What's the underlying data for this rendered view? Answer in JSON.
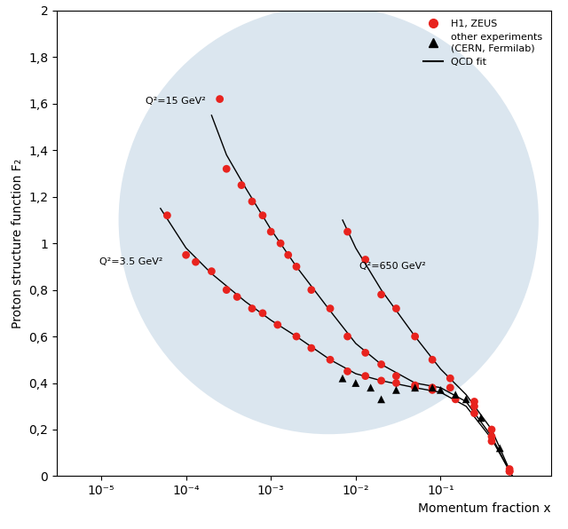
{
  "chart_data": {
    "type": "scatter",
    "x_label": "Momentum fraction x",
    "y_label": "Proton structure function F₂",
    "log": "x",
    "grid": false,
    "legend": "upper right",
    "xlim": [
      3e-06,
      2
    ],
    "ylim": [
      0,
      2
    ],
    "xticks": [
      {
        "value": 1e-05,
        "label": "10⁻⁵"
      },
      {
        "value": 0.0001,
        "label": "10⁻⁴"
      },
      {
        "value": 0.001,
        "label": "10⁻³"
      },
      {
        "value": 0.01,
        "label": "10⁻²"
      },
      {
        "value": 0.1,
        "label": "10⁻¹"
      }
    ],
    "yticks": [
      0,
      {
        "value": 0.2,
        "label": "0,2"
      },
      {
        "value": 0.4,
        "label": "0,4"
      },
      {
        "value": 0.6,
        "label": "0,6"
      },
      {
        "value": 0.8,
        "label": "0,8"
      },
      1,
      {
        "value": 1.2,
        "label": "1,2"
      },
      {
        "value": 1.4,
        "label": "1,4"
      },
      {
        "value": 1.6,
        "label": "1,6"
      },
      {
        "value": 1.8,
        "label": "1,8"
      },
      2
    ],
    "series": [
      {
        "name": "H1, ZEUS",
        "type": "scatter",
        "color": "#e8231e",
        "marker": "circle",
        "curves": [
          {
            "label": "Q²=15 GeV²",
            "x": [
              0.00025,
              0.0003,
              0.00045,
              0.0006,
              0.0008,
              0.001,
              0.0013,
              0.0016,
              0.002,
              0.003,
              0.005,
              0.008,
              0.013,
              0.02,
              0.03,
              0.05,
              0.08,
              0.13,
              0.25,
              0.4,
              0.65
            ],
            "values": [
              1.62,
              1.32,
              1.25,
              1.18,
              1.12,
              1.05,
              1.0,
              0.95,
              0.9,
              0.8,
              0.72,
              0.6,
              0.53,
              0.48,
              0.43,
              0.39,
              0.38,
              0.38,
              0.3,
              0.17,
              0.02
            ]
          },
          {
            "label": "Q²=3.5 GeV²",
            "x": [
              6e-05,
              0.0001,
              0.00013,
              0.0002,
              0.0003,
              0.0004,
              0.0006,
              0.0008,
              0.0012,
              0.002,
              0.003,
              0.005,
              0.008,
              0.013,
              0.02,
              0.03,
              0.05,
              0.08,
              0.15,
              0.25,
              0.4,
              0.65
            ],
            "values": [
              1.12,
              0.95,
              0.92,
              0.88,
              0.8,
              0.77,
              0.72,
              0.7,
              0.65,
              0.6,
              0.55,
              0.5,
              0.45,
              0.43,
              0.41,
              0.4,
              0.38,
              0.37,
              0.33,
              0.27,
              0.15,
              0.02
            ]
          },
          {
            "label": "Q²=650 GeV²",
            "x": [
              0.008,
              0.013,
              0.02,
              0.03,
              0.05,
              0.08,
              0.13,
              0.25,
              0.4,
              0.65
            ],
            "values": [
              1.05,
              0.93,
              0.78,
              0.72,
              0.6,
              0.5,
              0.42,
              0.32,
              0.2,
              0.03
            ]
          }
        ]
      },
      {
        "name": "other experiments\n(CERN, Fermilab)",
        "type": "scatter",
        "color": "#000000",
        "marker": "triangle",
        "curves": [
          {
            "x": [
              0.007,
              0.01,
              0.015,
              0.02,
              0.03,
              0.05,
              0.08,
              0.1,
              0.15,
              0.2,
              0.3,
              0.5
            ],
            "values": [
              0.42,
              0.4,
              0.38,
              0.33,
              0.37,
              0.38,
              0.38,
              0.37,
              0.35,
              0.33,
              0.25,
              0.12
            ]
          }
        ]
      },
      {
        "name": "QCD fit",
        "type": "line",
        "color": "#000000",
        "line_style": "solid",
        "curves": [
          {
            "x": [
              0.0002,
              0.0003,
              0.0005,
              0.001,
              0.002,
              0.005,
              0.01,
              0.02,
              0.05,
              0.1,
              0.2,
              0.4,
              0.7
            ],
            "values": [
              1.55,
              1.38,
              1.24,
              1.06,
              0.9,
              0.71,
              0.57,
              0.48,
              0.4,
              0.38,
              0.32,
              0.17,
              0.0
            ]
          },
          {
            "x": [
              5e-05,
              0.0001,
              0.0002,
              0.0005,
              0.001,
              0.002,
              0.005,
              0.01,
              0.02,
              0.05,
              0.1,
              0.2,
              0.4,
              0.7
            ],
            "values": [
              1.15,
              0.98,
              0.87,
              0.75,
              0.67,
              0.6,
              0.5,
              0.44,
              0.41,
              0.38,
              0.36,
              0.3,
              0.16,
              0.0
            ]
          },
          {
            "x": [
              0.007,
              0.01,
              0.02,
              0.05,
              0.1,
              0.2,
              0.4,
              0.7
            ],
            "values": [
              1.1,
              0.98,
              0.8,
              0.6,
              0.46,
              0.35,
              0.2,
              0.0
            ]
          }
        ]
      }
    ]
  }
}
